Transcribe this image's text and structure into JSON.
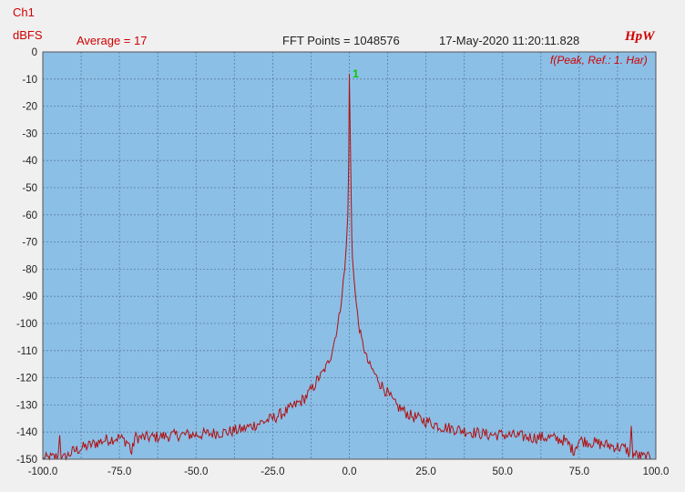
{
  "header": {
    "channel": "Ch1",
    "unit": "dBFS",
    "average": "Average = 17",
    "fft_points": "FFT Points = 1048576",
    "timestamp": "17-May-2020 11:20:11.828",
    "brand": "HpW",
    "peak_ref": "f(Peak, Ref.: 1. Har)"
  },
  "colors": {
    "plot_bg": "#8cbfe6",
    "grid": "#5a7d9e",
    "trace": "#b01010",
    "marker": "#00cc00",
    "header_red": "#d00000"
  },
  "chart_data": {
    "type": "line",
    "title": "",
    "xlabel": "",
    "ylabel": "dBFS",
    "xlim": [
      -100,
      100
    ],
    "ylim": [
      -150,
      0
    ],
    "grid": true,
    "x_ticks": [
      "-100.0",
      "-75.0",
      "-50.0",
      "-25.0",
      "0.0",
      "25.0",
      "50.0",
      "75.0",
      "100.0"
    ],
    "y_ticks": [
      "0",
      "-10",
      "-20",
      "-30",
      "-40",
      "-50",
      "-60",
      "-70",
      "-80",
      "-90",
      "-100",
      "-110",
      "-120",
      "-130",
      "-140",
      "-150"
    ],
    "marker_label": "1",
    "marker_at": [
      0.5,
      -8
    ],
    "series": [
      {
        "x": [
          -100,
          -95,
          -94.5,
          -94,
          -93.5,
          -90,
          -85,
          -80,
          -75,
          -72,
          -71,
          -70,
          -65,
          -60,
          -55,
          -50,
          -45,
          -40,
          -35,
          -30,
          -25,
          -20,
          -15,
          -12,
          -10,
          -8,
          -6,
          -5,
          -4,
          -3,
          -2,
          -1.5,
          -1,
          -0.5,
          -0.2,
          0,
          0.3,
          0.5,
          0.8,
          1,
          1.5,
          2,
          3,
          4,
          5,
          6,
          8,
          10,
          12,
          15,
          20,
          25,
          30,
          35,
          40,
          45,
          50,
          55,
          60,
          65,
          70,
          72,
          73,
          74,
          75,
          80,
          85,
          90,
          91.5,
          92,
          92.5,
          95,
          100
        ],
        "y": [
          -150,
          -149,
          -140,
          -149,
          -150,
          -147,
          -145,
          -143,
          -142,
          -144,
          -148,
          -142,
          -142,
          -141.5,
          -141,
          -141,
          -140.5,
          -140,
          -139,
          -137,
          -135,
          -132,
          -128,
          -124,
          -120,
          -117,
          -112,
          -107,
          -102,
          -95,
          -85,
          -80,
          -72,
          -60,
          -40,
          -8,
          -30,
          -45,
          -68,
          -75,
          -82,
          -90,
          -100,
          -106,
          -110,
          -114,
          -118,
          -122,
          -125,
          -130,
          -134,
          -136,
          -138,
          -139,
          -140,
          -141,
          -141,
          -141.5,
          -142,
          -142,
          -143,
          -145,
          -147,
          -145,
          -143,
          -144,
          -145,
          -146,
          -148,
          -139,
          -148,
          -149,
          -150
        ]
      }
    ]
  }
}
